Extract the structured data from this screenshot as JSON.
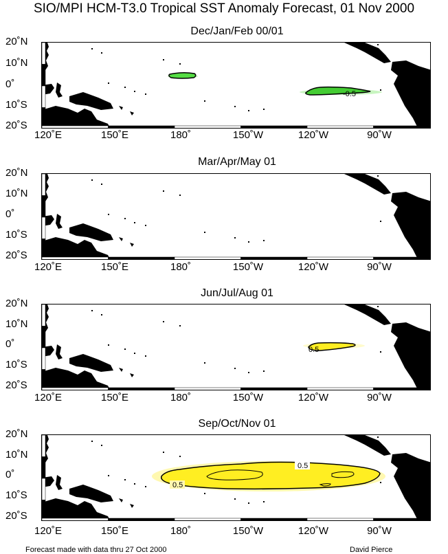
{
  "title": "SIO/MPI HCM-T3.0 Tropical SST Anomaly Forecast, 01 Nov 2000",
  "lat_labels": [
    "20˚N",
    "10˚N",
    "0˚",
    "10˚S",
    "20˚S"
  ],
  "lon_labels": [
    "120˚E",
    "150˚E",
    "180˚",
    "150˚W",
    "120˚W",
    "90˚W"
  ],
  "colors": {
    "positive": "#ffee22",
    "positive_light": "#fff8a8",
    "negative": "#33cc33",
    "negative_light": "#b8f0b0",
    "land": "#000000"
  },
  "panels": [
    {
      "title": "Dec/Jan/Feb 00/01",
      "contours": [
        {
          "sign": "negative",
          "level": "-0.5",
          "label": "-0.5"
        },
        {
          "sign": "negative",
          "level": "-0.5",
          "label": ""
        }
      ]
    },
    {
      "title": "Mar/Apr/May 01",
      "contours": []
    },
    {
      "title": "Jun/Jul/Aug 01",
      "contours": [
        {
          "sign": "positive",
          "level": "0.5",
          "label": "0.5"
        }
      ]
    },
    {
      "title": "Sep/Oct/Nov 01",
      "contours": [
        {
          "sign": "positive",
          "level": "0.5",
          "label": "0.5"
        },
        {
          "sign": "positive",
          "level": "0.5",
          "label": "0.5"
        }
      ]
    }
  ],
  "footer": {
    "left": "Forecast made with data thru 27 Oct 2000",
    "right": "David Pierce"
  }
}
